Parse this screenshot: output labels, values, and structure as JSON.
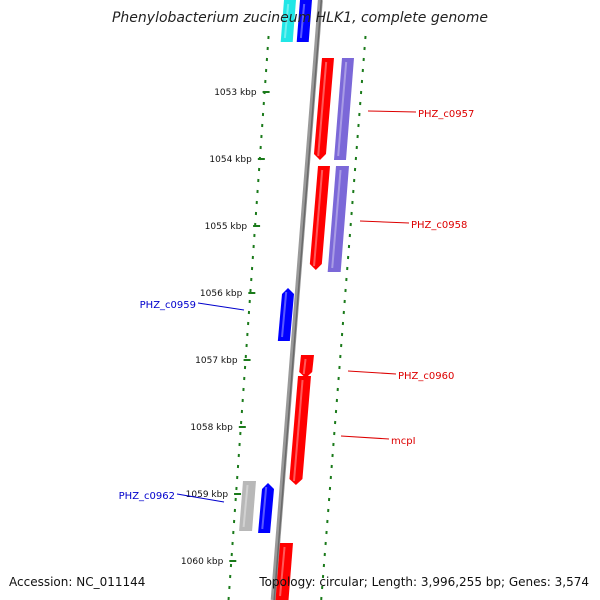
{
  "title": "Phenylobacterium zucineum HLK1, complete genome",
  "footer": {
    "accession": "Accession: NC_011144",
    "summary": "Topology: circular; Length: 3,996,255 bp; Genes: 3,574"
  },
  "ticks": [
    "1053 kbp",
    "1054 kbp",
    "1055 kbp",
    "1056 kbp",
    "1057 kbp",
    "1058 kbp",
    "1059 kbp",
    "1060 kbp"
  ],
  "gene_labels": [
    {
      "text": "PHZ_c0957",
      "strand": "reverse"
    },
    {
      "text": "PHZ_c0958",
      "strand": "reverse"
    },
    {
      "text": "PHZ_c0959",
      "strand": "forward"
    },
    {
      "text": "PHZ_c0960",
      "strand": "reverse"
    },
    {
      "text": "mcpI",
      "strand": "reverse"
    },
    {
      "text": "PHZ_c0962",
      "strand": "forward"
    }
  ],
  "colors": {
    "forward_label": "#0000cc",
    "reverse_label": "#dd0000",
    "forward_gene": "#0000ff",
    "reverse_gene": "#ff0000",
    "rna_gene": "#7b68d8",
    "cyan_gene": "#22e6e6",
    "pseudo_gene": "#b8b8b8",
    "axis": "#8a8a8a",
    "dotted_ring": "#1a7a1a"
  }
}
